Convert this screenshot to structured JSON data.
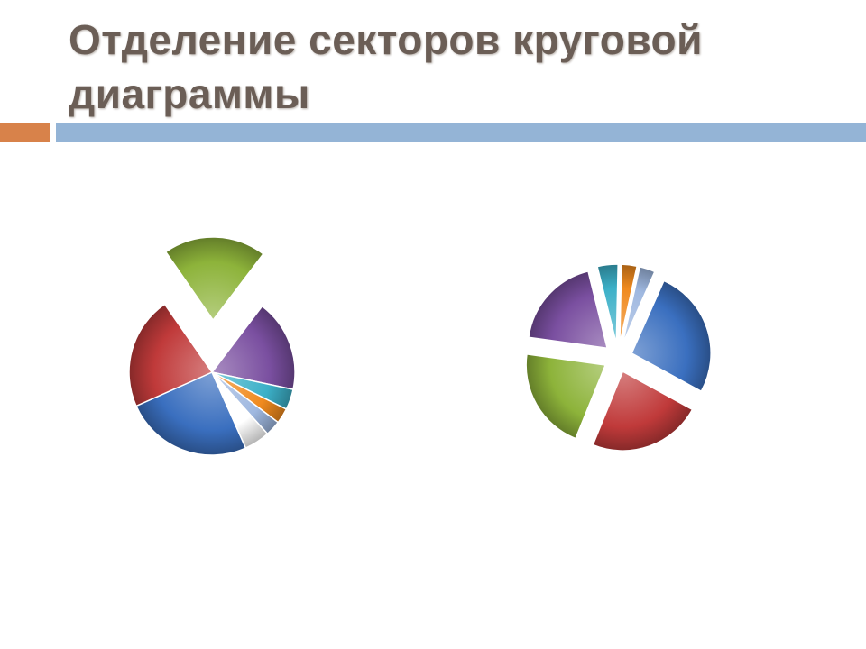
{
  "slide": {
    "title": "Отделение секторов круговой диаграммы"
  },
  "colors": {
    "accent_orange": "#d8824a",
    "header_blue": "#94b4d6",
    "title_color": "#6b5e56"
  },
  "chart_data": [
    {
      "type": "pie",
      "exploded": "single",
      "values": [
        25,
        22,
        20,
        18,
        4,
        3,
        3,
        5
      ],
      "colors": [
        "#3a6fbf",
        "#c03a3a",
        "#8db33a",
        "#7a4fa0",
        "#3cb0c8",
        "#f08a1e",
        "#9fb8e0",
        "#ffffff"
      ],
      "explode": [
        0,
        0,
        1,
        0,
        0,
        0,
        0,
        0
      ]
    },
    {
      "type": "pie",
      "exploded": "all",
      "values": [
        25,
        22,
        20,
        18,
        4,
        3,
        3
      ],
      "colors": [
        "#3a6fbf",
        "#c03a3a",
        "#8db33a",
        "#7a4fa0",
        "#3cb0c8",
        "#f08a1e",
        "#9fb8e0"
      ],
      "explode": [
        1,
        1,
        1,
        1,
        1,
        1,
        1
      ]
    }
  ]
}
